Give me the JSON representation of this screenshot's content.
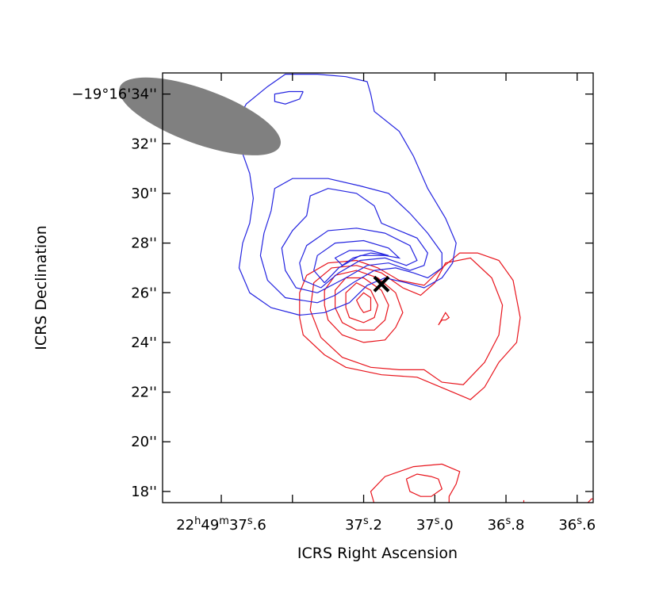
{
  "chart_data": {
    "type": "contour",
    "xlabel": "ICRS Right Ascension",
    "ylabel": "ICRS Declination",
    "x_ticks": [
      {
        "ra_s": 37.6,
        "h": "22",
        "m": "49",
        "s": "37",
        "frac": ".6"
      },
      {
        "ra_s": 37.4,
        "h": "",
        "m": "",
        "s": "",
        "frac": ""
      },
      {
        "ra_s": 37.2,
        "h": "",
        "m": "",
        "s": "37",
        "frac": ".2"
      },
      {
        "ra_s": 37.0,
        "h": "",
        "m": "",
        "s": "37",
        "frac": ".0"
      },
      {
        "ra_s": 36.8,
        "h": "",
        "m": "",
        "s": "36",
        "frac": ".8"
      },
      {
        "ra_s": 36.6,
        "h": "",
        "m": "",
        "s": "36",
        "frac": ".6"
      }
    ],
    "y_ticks": [
      {
        "dec_arcsec": 18,
        "label": "18''"
      },
      {
        "dec_arcsec": 20,
        "label": "20''"
      },
      {
        "dec_arcsec": 22,
        "label": "22''"
      },
      {
        "dec_arcsec": 24,
        "label": "24''"
      },
      {
        "dec_arcsec": 26,
        "label": "26''"
      },
      {
        "dec_arcsec": 28,
        "label": "28''"
      },
      {
        "dec_arcsec": 30,
        "label": "30''"
      },
      {
        "dec_arcsec": 32,
        "label": "32''"
      },
      {
        "dec_arcsec": 34,
        "label": "−19°16'34''"
      }
    ],
    "xlim": [
      37.765,
      36.555
    ],
    "ylim": [
      34.85,
      17.55
    ],
    "marker": {
      "ra_s": 37.15,
      "dec_arcsec": 26.35,
      "symbol": "x",
      "color": "#000000"
    },
    "beam": {
      "ra_s": 37.66,
      "dec_arcsec": 33.1,
      "major_arcsec": 2.2,
      "minor_ra_s": 0.24,
      "color": "#808080"
    },
    "series": [
      {
        "color": "#e8141c",
        "contours": [
          [
            [
              37.17,
              17.5
            ],
            [
              37.18,
              18.0
            ],
            [
              37.14,
              18.6
            ],
            [
              37.06,
              19.0
            ],
            [
              36.98,
              19.1
            ],
            [
              36.93,
              18.8
            ],
            [
              36.94,
              18.3
            ],
            [
              36.96,
              17.8
            ],
            [
              36.96,
              17.5
            ]
          ],
          [
            [
              37.08,
              18.5
            ],
            [
              37.07,
              18.0
            ],
            [
              37.04,
              17.8
            ],
            [
              37.01,
              17.8
            ],
            [
              36.98,
              18.1
            ],
            [
              36.99,
              18.5
            ],
            [
              37.01,
              18.6
            ],
            [
              37.05,
              18.7
            ],
            [
              37.08,
              18.5
            ]
          ],
          [
            [
              36.75,
              17.55
            ],
            [
              36.75,
              17.65
            ]
          ],
          [
            [
              36.57,
              17.55
            ],
            [
              36.56,
              17.7
            ],
            [
              36.555,
              17.7
            ]
          ],
          [
            [
              37.38,
              25.0
            ],
            [
              37.37,
              24.3
            ],
            [
              37.31,
              23.5
            ],
            [
              37.25,
              23.0
            ],
            [
              37.15,
              22.7
            ],
            [
              37.05,
              22.6
            ],
            [
              36.95,
              22.0
            ],
            [
              36.9,
              21.7
            ],
            [
              36.86,
              22.2
            ],
            [
              36.82,
              23.2
            ],
            [
              36.77,
              24.0
            ],
            [
              36.76,
              25.0
            ],
            [
              36.78,
              26.5
            ],
            [
              36.82,
              27.3
            ],
            [
              36.88,
              27.6
            ],
            [
              36.93,
              27.6
            ],
            [
              36.98,
              27.0
            ],
            [
              37.03,
              26.3
            ],
            [
              37.1,
              26.5
            ],
            [
              37.16,
              27.0
            ],
            [
              37.22,
              27.3
            ],
            [
              37.3,
              27.2
            ],
            [
              37.36,
              26.7
            ],
            [
              37.38,
              26.0
            ],
            [
              37.38,
              25.0
            ]
          ],
          [
            [
              37.35,
              25.3
            ],
            [
              37.32,
              24.2
            ],
            [
              37.26,
              23.4
            ],
            [
              37.18,
              23.0
            ],
            [
              37.1,
              22.9
            ],
            [
              37.03,
              22.9
            ],
            [
              36.98,
              22.4
            ],
            [
              36.92,
              22.3
            ],
            [
              36.86,
              23.2
            ],
            [
              36.82,
              24.3
            ],
            [
              36.81,
              25.5
            ],
            [
              36.84,
              26.6
            ],
            [
              36.9,
              27.4
            ],
            [
              36.97,
              27.2
            ],
            [
              37.0,
              26.4
            ],
            [
              37.04,
              25.9
            ],
            [
              37.09,
              26.2
            ],
            [
              37.15,
              26.8
            ],
            [
              37.22,
              27.1
            ],
            [
              37.29,
              27.0
            ],
            [
              37.34,
              26.4
            ],
            [
              37.35,
              25.3
            ]
          ],
          [
            [
              36.99,
              24.7
            ],
            [
              36.98,
              24.9
            ],
            [
              36.97,
              24.9
            ],
            [
              36.96,
              25.0
            ],
            [
              36.97,
              25.2
            ],
            [
              36.99,
              24.7
            ]
          ],
          [
            [
              37.31,
              25.5
            ],
            [
              37.3,
              24.9
            ],
            [
              37.26,
              24.3
            ],
            [
              37.2,
              24.0
            ],
            [
              37.14,
              24.1
            ],
            [
              37.11,
              24.6
            ],
            [
              37.09,
              25.2
            ],
            [
              37.11,
              26.0
            ],
            [
              37.16,
              26.6
            ],
            [
              37.22,
              26.9
            ],
            [
              37.28,
              26.7
            ],
            [
              37.31,
              26.1
            ],
            [
              37.31,
              25.5
            ]
          ],
          [
            [
              37.28,
              25.4
            ],
            [
              37.26,
              24.8
            ],
            [
              37.22,
              24.5
            ],
            [
              37.17,
              24.5
            ],
            [
              37.14,
              24.9
            ],
            [
              37.13,
              25.5
            ],
            [
              37.15,
              26.1
            ],
            [
              37.2,
              26.6
            ],
            [
              37.25,
              26.6
            ],
            [
              37.28,
              26.1
            ],
            [
              37.28,
              25.4
            ]
          ],
          [
            [
              37.25,
              25.4
            ],
            [
              37.24,
              25.0
            ],
            [
              37.2,
              24.8
            ],
            [
              37.17,
              25.0
            ],
            [
              37.16,
              25.5
            ],
            [
              37.18,
              26.1
            ],
            [
              37.22,
              26.4
            ],
            [
              37.25,
              26.0
            ],
            [
              37.25,
              25.4
            ]
          ],
          [
            [
              37.21,
              25.4
            ],
            [
              37.2,
              25.2
            ],
            [
              37.18,
              25.3
            ],
            [
              37.18,
              25.8
            ],
            [
              37.2,
              26.0
            ],
            [
              37.22,
              25.7
            ],
            [
              37.21,
              25.4
            ]
          ]
        ]
      },
      {
        "color": "#2424e0",
        "contours": [
          [
            [
              37.38,
              25.1
            ],
            [
              37.46,
              25.4
            ],
            [
              37.52,
              26.0
            ],
            [
              37.55,
              27.0
            ],
            [
              37.54,
              28.0
            ],
            [
              37.52,
              28.8
            ],
            [
              37.51,
              29.8
            ],
            [
              37.52,
              30.8
            ],
            [
              37.54,
              31.6
            ],
            [
              37.58,
              31.9
            ],
            [
              37.62,
              31.9
            ],
            [
              37.6,
              32.3
            ],
            [
              37.56,
              32.8
            ],
            [
              37.53,
              33.6
            ],
            [
              37.47,
              34.3
            ],
            [
              37.42,
              34.8
            ],
            [
              37.33,
              34.8
            ],
            [
              37.25,
              34.7
            ],
            [
              37.19,
              34.5
            ],
            [
              37.18,
              34.0
            ],
            [
              37.17,
              33.3
            ],
            [
              37.1,
              32.5
            ],
            [
              37.06,
              31.5
            ],
            [
              37.02,
              30.2
            ],
            [
              36.97,
              29.0
            ],
            [
              36.94,
              28.0
            ],
            [
              36.95,
              27.2
            ],
            [
              36.98,
              26.6
            ],
            [
              37.03,
              26.2
            ],
            [
              37.08,
              26.4
            ],
            [
              37.14,
              26.6
            ],
            [
              37.19,
              26.3
            ],
            [
              37.24,
              25.6
            ],
            [
              37.31,
              25.2
            ],
            [
              37.38,
              25.1
            ]
          ],
          [
            [
              37.37,
              34.1
            ],
            [
              37.38,
              33.8
            ],
            [
              37.42,
              33.6
            ],
            [
              37.45,
              33.7
            ],
            [
              37.45,
              34.0
            ],
            [
              37.41,
              34.1
            ],
            [
              37.37,
              34.1
            ]
          ],
          [
            [
              37.33,
              25.6
            ],
            [
              37.42,
              25.8
            ],
            [
              37.47,
              26.5
            ],
            [
              37.49,
              27.5
            ],
            [
              37.48,
              28.4
            ],
            [
              37.46,
              29.3
            ],
            [
              37.45,
              30.2
            ],
            [
              37.4,
              30.6
            ],
            [
              37.3,
              30.6
            ],
            [
              37.21,
              30.3
            ],
            [
              37.13,
              30.0
            ],
            [
              37.07,
              29.2
            ],
            [
              37.02,
              28.4
            ],
            [
              36.98,
              27.6
            ],
            [
              36.98,
              27.0
            ],
            [
              37.02,
              26.6
            ],
            [
              37.06,
              26.8
            ],
            [
              37.11,
              27.0
            ],
            [
              37.17,
              26.9
            ],
            [
              37.23,
              26.4
            ],
            [
              37.28,
              25.9
            ],
            [
              37.33,
              25.6
            ]
          ],
          [
            [
              37.33,
              26.0
            ],
            [
              37.39,
              26.2
            ],
            [
              37.42,
              26.9
            ],
            [
              37.43,
              27.8
            ],
            [
              37.4,
              28.5
            ],
            [
              37.36,
              29.1
            ],
            [
              37.35,
              29.9
            ],
            [
              37.3,
              30.2
            ],
            [
              37.22,
              30.0
            ],
            [
              37.17,
              29.5
            ],
            [
              37.15,
              28.8
            ],
            [
              37.1,
              28.5
            ],
            [
              37.05,
              28.2
            ],
            [
              37.02,
              27.6
            ],
            [
              37.03,
              27.1
            ],
            [
              37.07,
              26.9
            ],
            [
              37.13,
              27.2
            ],
            [
              37.19,
              27.1
            ],
            [
              37.25,
              26.6
            ],
            [
              37.33,
              26.0
            ]
          ],
          [
            [
              37.32,
              26.2
            ],
            [
              37.37,
              26.5
            ],
            [
              37.38,
              27.2
            ],
            [
              37.36,
              27.9
            ],
            [
              37.3,
              28.5
            ],
            [
              37.22,
              28.6
            ],
            [
              37.14,
              28.4
            ],
            [
              37.07,
              27.9
            ],
            [
              37.05,
              27.3
            ],
            [
              37.08,
              27.1
            ],
            [
              37.14,
              27.4
            ],
            [
              37.21,
              27.3
            ],
            [
              37.27,
              26.8
            ],
            [
              37.32,
              26.2
            ]
          ],
          [
            [
              37.31,
              26.4
            ],
            [
              37.34,
              26.9
            ],
            [
              37.33,
              27.5
            ],
            [
              37.28,
              28.0
            ],
            [
              37.2,
              28.1
            ],
            [
              37.13,
              27.8
            ],
            [
              37.1,
              27.4
            ],
            [
              37.14,
              27.5
            ],
            [
              37.21,
              27.5
            ],
            [
              37.27,
              27.0
            ],
            [
              37.31,
              26.4
            ]
          ],
          [
            [
              37.26,
              27.1
            ],
            [
              37.28,
              27.4
            ],
            [
              37.24,
              27.7
            ],
            [
              37.18,
              27.7
            ],
            [
              37.13,
              27.5
            ],
            [
              37.18,
              27.6
            ],
            [
              37.23,
              27.4
            ],
            [
              37.26,
              27.1
            ]
          ]
        ]
      }
    ]
  }
}
